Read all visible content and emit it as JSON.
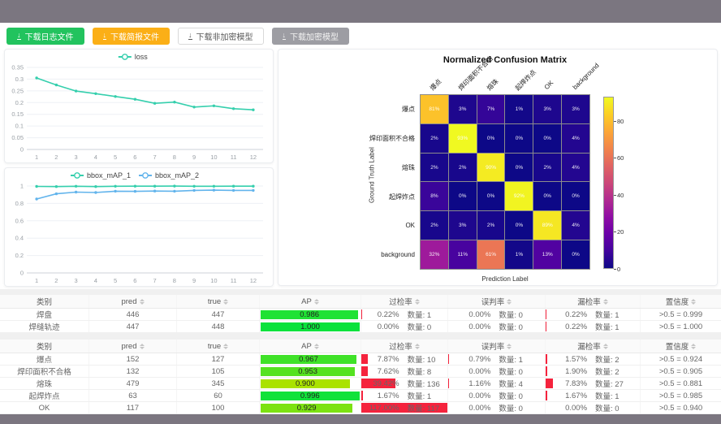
{
  "toolbar": {
    "buttons": [
      {
        "label": "下载日志文件",
        "type": "green"
      },
      {
        "label": "下载简报文件",
        "type": "orange"
      },
      {
        "label": "下载非加密模型",
        "type": "plain"
      },
      {
        "label": "下载加密模型",
        "type": "gray"
      }
    ]
  },
  "chart_data": [
    {
      "type": "line",
      "name": "loss-chart",
      "x": [
        1,
        2,
        3,
        4,
        5,
        6,
        7,
        8,
        9,
        10,
        11,
        12
      ],
      "ylim": [
        0,
        0.35
      ],
      "ytick": 0.05,
      "grid": true,
      "legend_position": "top",
      "series": [
        {
          "name": "loss",
          "color": "#35cfad",
          "values": [
            0.305,
            0.275,
            0.249,
            0.238,
            0.226,
            0.214,
            0.197,
            0.202,
            0.181,
            0.186,
            0.174,
            0.169
          ]
        }
      ]
    },
    {
      "type": "line",
      "name": "map-chart",
      "x": [
        1,
        2,
        3,
        4,
        5,
        6,
        7,
        8,
        9,
        10,
        11,
        12
      ],
      "ylim": [
        0,
        1
      ],
      "ytick": 0.2,
      "grid": true,
      "legend_position": "top",
      "series": [
        {
          "name": "bbox_mAP_1",
          "color": "#35cfad",
          "values": [
            0.995,
            0.993,
            0.997,
            0.993,
            0.997,
            0.998,
            0.998,
            0.999,
            0.997,
            0.997,
            0.998,
            0.998
          ]
        },
        {
          "name": "bbox_mAP_2",
          "color": "#62b4ec",
          "values": [
            0.85,
            0.91,
            0.93,
            0.925,
            0.94,
            0.938,
            0.942,
            0.94,
            0.95,
            0.952,
            0.95,
            0.95
          ]
        }
      ]
    },
    {
      "type": "heatmap",
      "name": "confusion-matrix",
      "title": "Normalized Confusion Matrix",
      "xlabel": "Prediction Label",
      "ylabel": "Ground Truth Label",
      "unit": "%",
      "labels": [
        "爆点",
        "焊印面积不合格",
        "熔珠",
        "起焊炸点",
        "OK",
        "background"
      ],
      "matrix": [
        [
          81,
          3,
          7,
          1,
          3,
          3
        ],
        [
          2,
          93,
          0,
          0,
          0,
          4
        ],
        [
          2,
          2,
          90,
          0,
          2,
          4
        ],
        [
          8,
          0,
          0,
          92,
          0,
          0
        ],
        [
          2,
          3,
          2,
          0,
          89,
          4
        ],
        [
          32,
          11,
          61,
          1,
          13,
          0
        ]
      ],
      "vmax": 93,
      "colorbar_ticks": [
        0,
        20,
        40,
        60,
        80
      ],
      "colormap": "plasma"
    }
  ],
  "table_headers": {
    "class": "类别",
    "pred": "pred",
    "true": "true",
    "ap": "AP",
    "over": "过检率",
    "misjudge": "误判率",
    "miss": "漏检率",
    "confidence": "置信度"
  },
  "count_label": "数量",
  "tables": [
    {
      "rows": [
        {
          "class": "焊盘",
          "pred": 446,
          "true": 447,
          "ap": "0.986",
          "over_pct": "0.22%",
          "over_n": 1,
          "mis_pct": "0.00%",
          "mis_n": 0,
          "miss_pct": "0.22%",
          "miss_n": 1,
          "conf": ">0.5 = 0.999"
        },
        {
          "class": "焊缝轨迹",
          "pred": 447,
          "true": 448,
          "ap": "1.000",
          "over_pct": "0.00%",
          "over_n": 0,
          "mis_pct": "0.00%",
          "mis_n": 0,
          "miss_pct": "0.22%",
          "miss_n": 1,
          "conf": ">0.5 = 1.000"
        }
      ]
    },
    {
      "rows": [
        {
          "class": "爆点",
          "pred": 152,
          "true": 127,
          "ap": "0.967",
          "over_pct": "7.87%",
          "over_n": 10,
          "mis_pct": "0.79%",
          "mis_n": 1,
          "miss_pct": "1.57%",
          "miss_n": 2,
          "conf": ">0.5 = 0.924"
        },
        {
          "class": "焊印面积不合格",
          "pred": 132,
          "true": 105,
          "ap": "0.953",
          "over_pct": "7.62%",
          "over_n": 8,
          "mis_pct": "0.00%",
          "mis_n": 0,
          "miss_pct": "1.90%",
          "miss_n": 2,
          "conf": ">0.5 = 0.905"
        },
        {
          "class": "熔珠",
          "pred": 479,
          "true": 345,
          "ap": "0.900",
          "over_pct": "39.42%",
          "over_n": 136,
          "mis_pct": "1.16%",
          "mis_n": 4,
          "miss_pct": "7.83%",
          "miss_n": 27,
          "conf": ">0.5 = 0.881"
        },
        {
          "class": "起焊炸点",
          "pred": 63,
          "true": 60,
          "ap": "0.996",
          "over_pct": "1.67%",
          "over_n": 1,
          "mis_pct": "0.00%",
          "mis_n": 0,
          "miss_pct": "1.67%",
          "miss_n": 1,
          "conf": ">0.5 = 0.985"
        },
        {
          "class": "OK",
          "pred": 117,
          "true": 100,
          "ap": "0.929",
          "over_pct": "117.00%",
          "over_n": 117,
          "mis_pct": "0.00%",
          "mis_n": 0,
          "miss_pct": "0.00%",
          "miss_n": 0,
          "conf": ">0.5 = 0.940"
        }
      ]
    }
  ],
  "colors": {
    "accent_teal": "#35cfad",
    "accent_blue": "#62b4ec",
    "bar_red": "#f5233d",
    "frame_gray": "#7b7680",
    "btn_green": "#22c35e",
    "btn_orange": "#fbaf17"
  }
}
